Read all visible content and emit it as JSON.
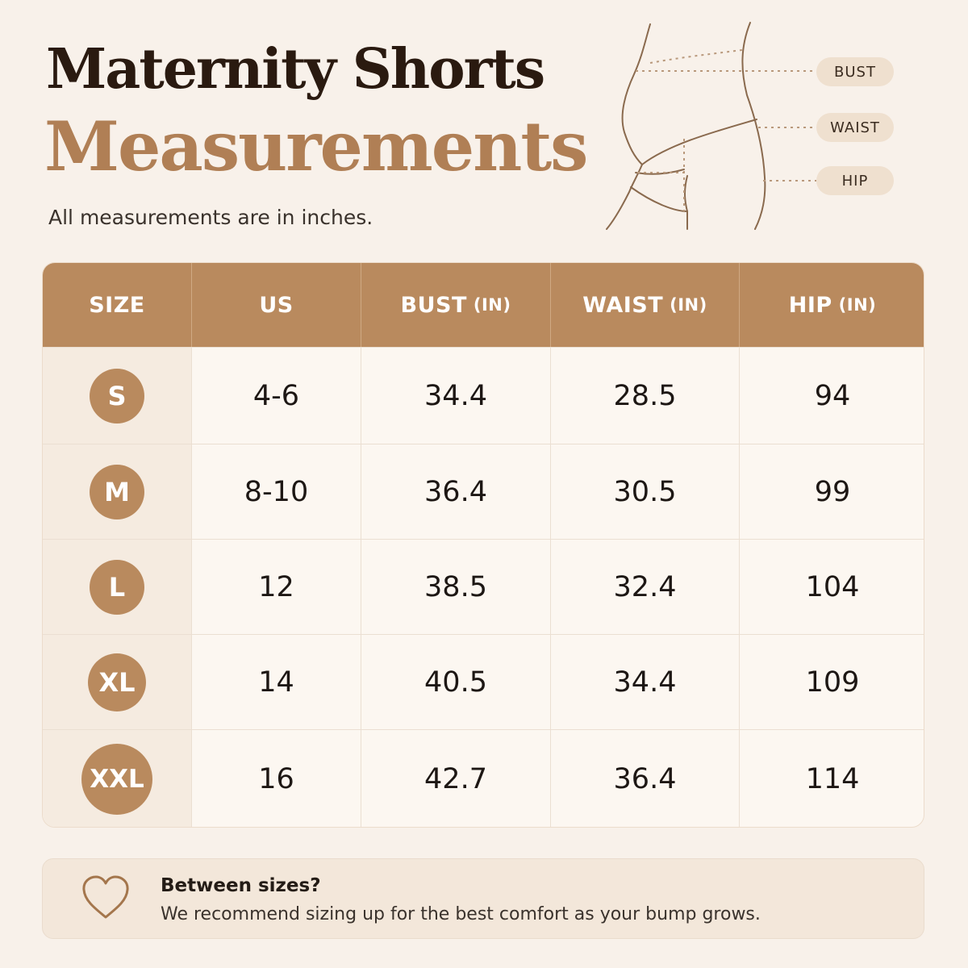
{
  "header": {
    "title_line1": "Maternity Shorts",
    "title_line2": "Measurements",
    "subtitle": "All measurements are in inches."
  },
  "figure": {
    "labels": [
      "BUST",
      "WAIST",
      "HIP"
    ],
    "icon": "maternity-body-outline-icon"
  },
  "table": {
    "columns": [
      {
        "label": "SIZE",
        "unit": ""
      },
      {
        "label": "US",
        "unit": ""
      },
      {
        "label": "BUST",
        "unit": "(IN)"
      },
      {
        "label": "WAIST",
        "unit": "(IN)"
      },
      {
        "label": "HIP",
        "unit": "(IN)"
      }
    ],
    "rows": [
      {
        "size": "S",
        "us": "4-6",
        "bust": "34.4",
        "waist": "28.5",
        "hip": "94"
      },
      {
        "size": "M",
        "us": "8-10",
        "bust": "36.4",
        "waist": "30.5",
        "hip": "99"
      },
      {
        "size": "L",
        "us": "12",
        "bust": "38.5",
        "waist": "32.4",
        "hip": "104"
      },
      {
        "size": "XL",
        "us": "14",
        "bust": "40.5",
        "waist": "34.4",
        "hip": "109"
      },
      {
        "size": "XXL",
        "us": "16",
        "bust": "42.7",
        "waist": "36.4",
        "hip": "114"
      }
    ]
  },
  "note": {
    "icon": "heart-icon",
    "title": "Between sizes?",
    "text": "We recommend sizing up for the best comfort as your bump grows."
  },
  "colors": {
    "accent": "#b98a5e",
    "background": "#f8f1ea",
    "title_dark": "#2a1a10",
    "title_accent": "#b07f55"
  }
}
